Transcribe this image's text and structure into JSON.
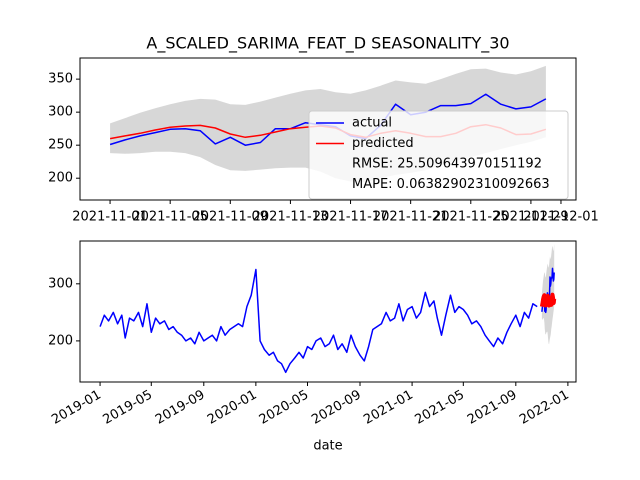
{
  "chart_data": [
    {
      "type": "line",
      "title": "A_SCALED_SARIMA_FEAT_D SEASONALITY_30",
      "x": [
        "2021-11-01",
        "2021-11-02",
        "2021-11-03",
        "2021-11-04",
        "2021-11-05",
        "2021-11-06",
        "2021-11-07",
        "2021-11-08",
        "2021-11-09",
        "2021-11-10",
        "2021-11-11",
        "2021-11-12",
        "2021-11-13",
        "2021-11-14",
        "2021-11-15",
        "2021-11-16",
        "2021-11-17",
        "2021-11-18",
        "2021-11-19",
        "2021-11-20",
        "2021-11-21",
        "2021-11-22",
        "2021-11-23",
        "2021-11-24",
        "2021-11-25",
        "2021-11-26",
        "2021-11-27",
        "2021-11-28",
        "2021-11-29",
        "2021-11-30"
      ],
      "series": [
        {
          "name": "actual",
          "color": "#0000ff",
          "values": [
            251,
            258,
            264,
            269,
            274,
            275,
            272,
            252,
            262,
            250,
            254,
            275,
            275,
            284,
            281,
            278,
            264,
            260,
            280,
            312,
            296,
            300,
            310,
            310,
            313,
            327,
            312,
            305,
            308,
            320
          ]
        },
        {
          "name": "predicted",
          "color": "#ff0000",
          "values": [
            260,
            264,
            268,
            273,
            277,
            279,
            280,
            276,
            267,
            262,
            265,
            270,
            275,
            277,
            279,
            276,
            266,
            262,
            268,
            272,
            268,
            263,
            263,
            268,
            278,
            281,
            276,
            266,
            267,
            274
          ]
        }
      ],
      "band": {
        "color": "#d3d3d3",
        "lower": [
          238,
          237,
          238,
          240,
          240,
          238,
          232,
          220,
          212,
          211,
          213,
          215,
          216,
          216,
          210,
          200,
          195,
          194,
          200,
          205,
          208,
          212,
          220,
          226,
          232,
          238,
          244,
          250,
          255,
          262
        ],
        "upper": [
          283,
          291,
          299,
          306,
          312,
          317,
          320,
          319,
          312,
          311,
          316,
          322,
          328,
          333,
          335,
          330,
          328,
          333,
          340,
          348,
          345,
          343,
          350,
          358,
          365,
          366,
          360,
          357,
          362,
          370
        ]
      },
      "legend": "lower right",
      "legend_notes": [
        "RMSE: 25.509643970151192",
        "MAPE: 0.06382902310092663"
      ],
      "xlim": [
        "2021-10-30",
        "2021-12-02"
      ],
      "xticks": [
        "2021-11-01",
        "2021-11-05",
        "2021-11-09",
        "2021-11-13",
        "2021-11-17",
        "2021-11-21",
        "2021-11-25",
        "2021-11-29",
        "2021-12-01"
      ],
      "ylim": [
        167,
        382
      ],
      "yticks": [
        200,
        250,
        300,
        350
      ]
    },
    {
      "type": "line",
      "xlabel": "date",
      "x": [
        "2019-01-01",
        "2019-01-11",
        "2019-01-21",
        "2019-02-01",
        "2019-02-11",
        "2019-02-21",
        "2019-03-01",
        "2019-03-11",
        "2019-03-21",
        "2019-04-01",
        "2019-04-11",
        "2019-04-21",
        "2019-05-01",
        "2019-05-11",
        "2019-05-21",
        "2019-06-01",
        "2019-06-11",
        "2019-06-21",
        "2019-07-01",
        "2019-07-11",
        "2019-07-21",
        "2019-08-01",
        "2019-08-11",
        "2019-08-21",
        "2019-09-01",
        "2019-09-11",
        "2019-09-21",
        "2019-10-01",
        "2019-10-11",
        "2019-10-21",
        "2019-11-01",
        "2019-11-11",
        "2019-11-21",
        "2019-12-01",
        "2019-12-11",
        "2019-12-21",
        "2020-01-01",
        "2020-01-11",
        "2020-01-21",
        "2020-02-01",
        "2020-02-11",
        "2020-02-21",
        "2020-03-01",
        "2020-03-11",
        "2020-03-21",
        "2020-04-01",
        "2020-04-11",
        "2020-04-21",
        "2020-05-01",
        "2020-05-11",
        "2020-05-21",
        "2020-06-01",
        "2020-06-11",
        "2020-06-21",
        "2020-07-01",
        "2020-07-11",
        "2020-07-21",
        "2020-08-01",
        "2020-08-11",
        "2020-08-21",
        "2020-09-01",
        "2020-09-11",
        "2020-09-21",
        "2020-10-01",
        "2020-10-11",
        "2020-10-21",
        "2020-11-01",
        "2020-11-11",
        "2020-11-21",
        "2020-12-01",
        "2020-12-11",
        "2020-12-21",
        "2021-01-01",
        "2021-01-11",
        "2021-01-21",
        "2021-02-01",
        "2021-02-11",
        "2021-02-21",
        "2021-03-01",
        "2021-03-11",
        "2021-03-21",
        "2021-04-01",
        "2021-04-11",
        "2021-04-21",
        "2021-05-01",
        "2021-05-11",
        "2021-05-21",
        "2021-06-01",
        "2021-06-11",
        "2021-06-21",
        "2021-07-01",
        "2021-07-11",
        "2021-07-21",
        "2021-08-01",
        "2021-08-11",
        "2021-08-21",
        "2021-09-01",
        "2021-09-11",
        "2021-09-21",
        "2021-10-01",
        "2021-10-11",
        "2021-10-21"
      ],
      "series": [
        {
          "color": "#0000ff",
          "values": [
            225,
            245,
            235,
            250,
            230,
            245,
            205,
            240,
            235,
            250,
            225,
            265,
            215,
            240,
            230,
            235,
            220,
            225,
            215,
            210,
            200,
            205,
            195,
            215,
            200,
            205,
            210,
            200,
            225,
            210,
            220,
            225,
            230,
            225,
            260,
            280,
            325,
            200,
            185,
            175,
            180,
            165,
            160,
            145,
            160,
            170,
            180,
            170,
            190,
            185,
            200,
            205,
            190,
            195,
            210,
            185,
            195,
            180,
            210,
            190,
            175,
            165,
            190,
            220,
            225,
            230,
            250,
            235,
            240,
            265,
            235,
            255,
            260,
            240,
            250,
            285,
            260,
            270,
            240,
            210,
            245,
            280,
            250,
            260,
            255,
            245,
            230,
            235,
            225,
            210,
            200,
            190,
            205,
            195,
            215,
            230,
            245,
            225,
            250,
            240,
            265,
            260
          ]
        }
      ],
      "xlim": [
        "2018-11-15",
        "2022-01-20"
      ],
      "xticks": [
        "2019-01",
        "2019-05",
        "2019-09",
        "2020-01",
        "2020-05",
        "2020-09",
        "2021-01",
        "2021-05",
        "2021-09",
        "2022-01"
      ],
      "ylim": [
        128,
        375
      ],
      "yticks": [
        200,
        300
      ]
    }
  ]
}
